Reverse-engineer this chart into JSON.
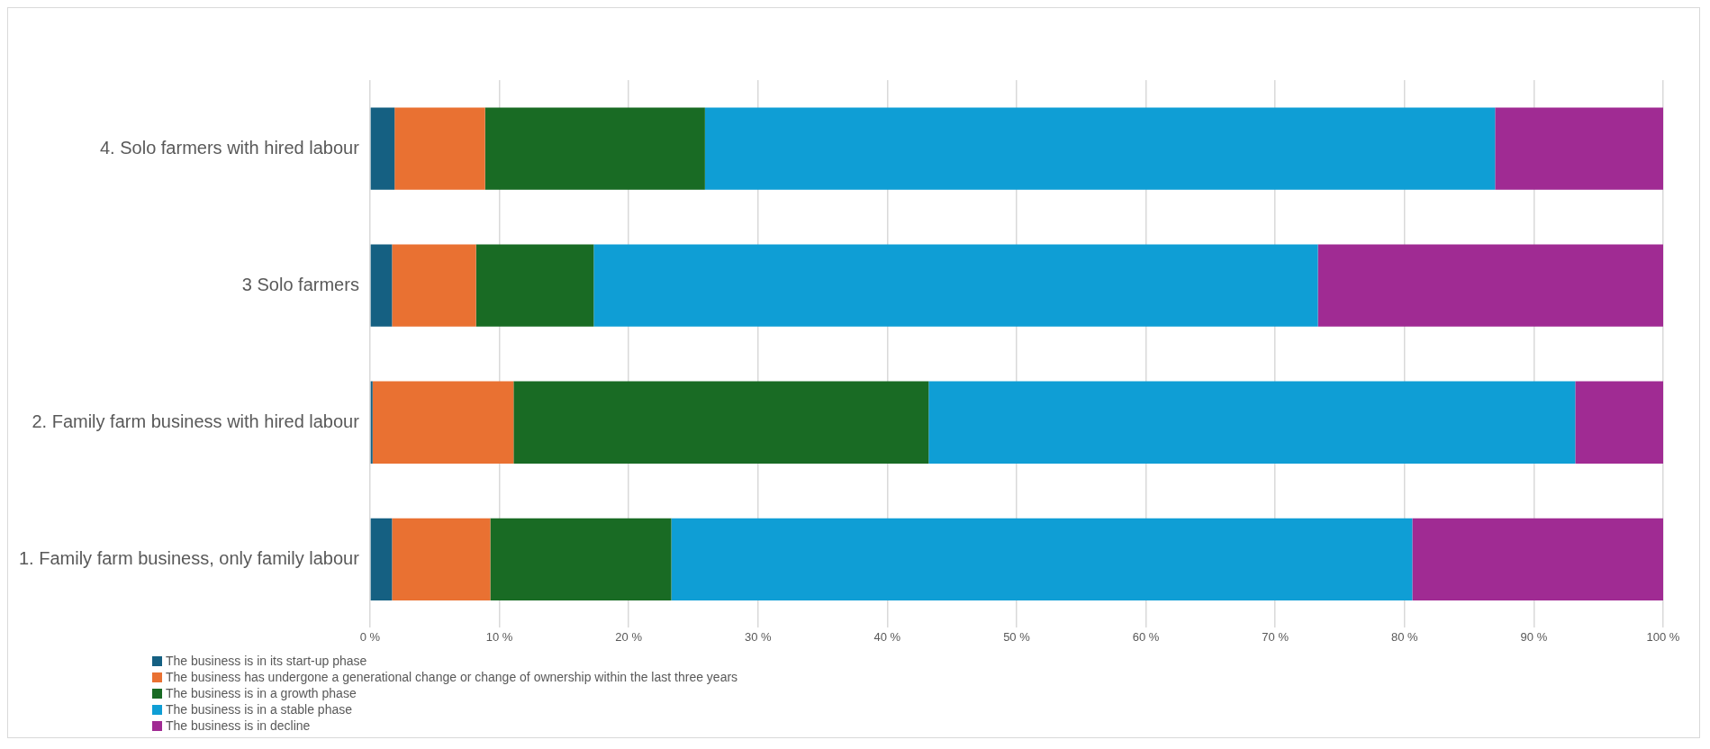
{
  "chart_data": {
    "type": "bar",
    "orientation": "horizontal",
    "stacked": true,
    "categories": [
      "4. Solo farmers with hired labour",
      "3 Solo farmers",
      "2. Family farm business with hired labour",
      "1. Family farm business, only family labour"
    ],
    "series": [
      {
        "name": "The business is in its start-up phase",
        "color": "#156082",
        "values": [
          1.9,
          1.7,
          0.2,
          1.7
        ]
      },
      {
        "name": "The business has undergone a generational change or change of ownership within the last three years",
        "color": "#e97132",
        "values": [
          7.0,
          6.5,
          10.9,
          7.6
        ]
      },
      {
        "name": "The business is in a growth phase",
        "color": "#196b24",
        "values": [
          17.0,
          9.1,
          32.1,
          14.0
        ]
      },
      {
        "name": "The business is in a stable phase",
        "color": "#0f9ed5",
        "values": [
          61.1,
          56.0,
          50.0,
          57.3
        ]
      },
      {
        "name": "The business is in decline",
        "color": "#a02b93",
        "values": [
          13.0,
          26.7,
          6.8,
          19.4
        ]
      }
    ],
    "xlim": [
      0,
      100
    ],
    "xticks": [
      {
        "value": 0,
        "label": "0 %"
      },
      {
        "value": 10,
        "label": "10 %"
      },
      {
        "value": 20,
        "label": "20 %"
      },
      {
        "value": 30,
        "label": "30 %"
      },
      {
        "value": 40,
        "label": "40 %"
      },
      {
        "value": 50,
        "label": "50 %"
      },
      {
        "value": 60,
        "label": "60 %"
      },
      {
        "value": 70,
        "label": "70 %"
      },
      {
        "value": 80,
        "label": "80 %"
      },
      {
        "value": 90,
        "label": "90 %"
      },
      {
        "value": 100,
        "label": "100 %"
      }
    ],
    "grid": "x",
    "legend": "bottom left"
  }
}
